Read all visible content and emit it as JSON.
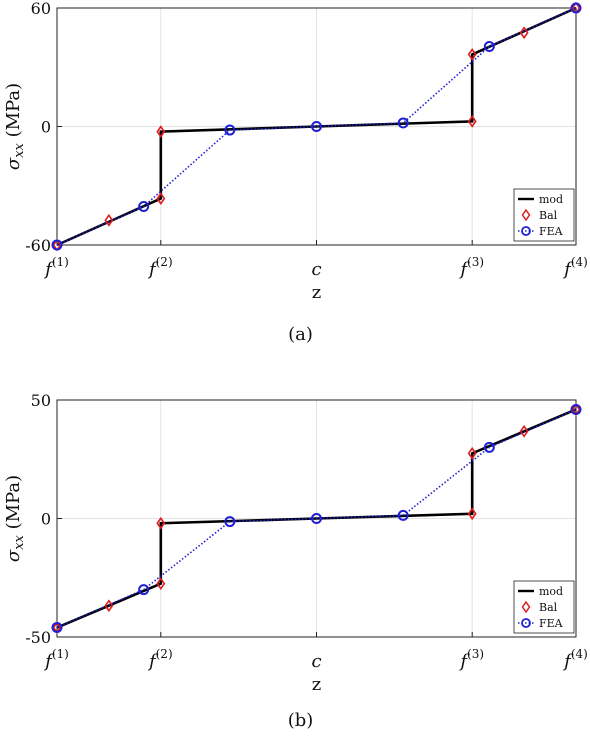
{
  "chart_data": [
    {
      "type": "line",
      "caption": "(a)",
      "xlabel": "z",
      "ylabel": "σxx (MPa)",
      "ylabel_symbol": "σ",
      "ylabel_sub": "xx",
      "ylabel_unit": " (MPa)",
      "ylim": [
        -60,
        60
      ],
      "yticks": [
        -60,
        0,
        60
      ],
      "xlim": [
        0,
        1
      ],
      "xticks": [
        {
          "base": "f",
          "sup": "(1)",
          "x": 0
        },
        {
          "base": "f",
          "sup": "(2)",
          "x": 0.2
        },
        {
          "base": "c",
          "sup": "",
          "x": 0.5
        },
        {
          "base": "f",
          "sup": "(3)",
          "x": 0.8
        },
        {
          "base": "f",
          "sup": "(4)",
          "x": 1
        }
      ],
      "grid": true,
      "legend_position": "bottom-right",
      "series": [
        {
          "name": "mod",
          "style": "line",
          "color": "#000000",
          "x": [
            0,
            0.2,
            0.2,
            0.5,
            0.8,
            0.8,
            1.0
          ],
          "y": [
            -60,
            -36.5,
            -2.6,
            0,
            2.6,
            36.5,
            60
          ]
        },
        {
          "name": "Bal",
          "style": "diamond",
          "color": "#e01b1b",
          "x": [
            0,
            0.1,
            0.2,
            0.2,
            0.8,
            0.8,
            0.9,
            1.0
          ],
          "y": [
            -60,
            -47.5,
            -36.5,
            -2.6,
            2.6,
            36.5,
            47.5,
            60
          ]
        },
        {
          "name": "FEA",
          "style": "circle-dotted",
          "color": "#1f1fd6",
          "x": [
            0,
            0.167,
            0.333,
            0.5,
            0.667,
            0.833,
            1.0
          ],
          "y": [
            -60,
            -40.5,
            -1.8,
            0,
            1.8,
            40.5,
            60
          ]
        }
      ]
    },
    {
      "type": "line",
      "caption": "(b)",
      "xlabel": "z",
      "ylabel": "σxx (MPa)",
      "ylabel_symbol": "σ",
      "ylabel_sub": "xx",
      "ylabel_unit": " (MPa)",
      "ylim": [
        -50,
        50
      ],
      "yticks": [
        -50,
        0,
        50
      ],
      "xlim": [
        0,
        1
      ],
      "xticks": [
        {
          "base": "f",
          "sup": "(1)",
          "x": 0
        },
        {
          "base": "f",
          "sup": "(2)",
          "x": 0.2
        },
        {
          "base": "c",
          "sup": "",
          "x": 0.5
        },
        {
          "base": "f",
          "sup": "(3)",
          "x": 0.8
        },
        {
          "base": "f",
          "sup": "(4)",
          "x": 1
        }
      ],
      "grid": true,
      "legend_position": "bottom-right",
      "series": [
        {
          "name": "mod",
          "style": "line",
          "color": "#000000",
          "x": [
            0,
            0.2,
            0.2,
            0.5,
            0.8,
            0.8,
            1.0
          ],
          "y": [
            -46,
            -27.5,
            -2,
            0,
            2,
            27.5,
            46
          ]
        },
        {
          "name": "Bal",
          "style": "diamond",
          "color": "#e01b1b",
          "x": [
            0,
            0.1,
            0.2,
            0.2,
            0.8,
            0.8,
            0.9,
            1.0
          ],
          "y": [
            -46,
            -36.8,
            -27.5,
            -2,
            2,
            27.5,
            36.8,
            46
          ]
        },
        {
          "name": "FEA",
          "style": "circle-dotted",
          "color": "#1f1fd6",
          "x": [
            0,
            0.167,
            0.333,
            0.5,
            0.667,
            0.833,
            1.0
          ],
          "y": [
            -46,
            -30,
            -1.3,
            0,
            1.3,
            30,
            46
          ]
        }
      ]
    }
  ]
}
